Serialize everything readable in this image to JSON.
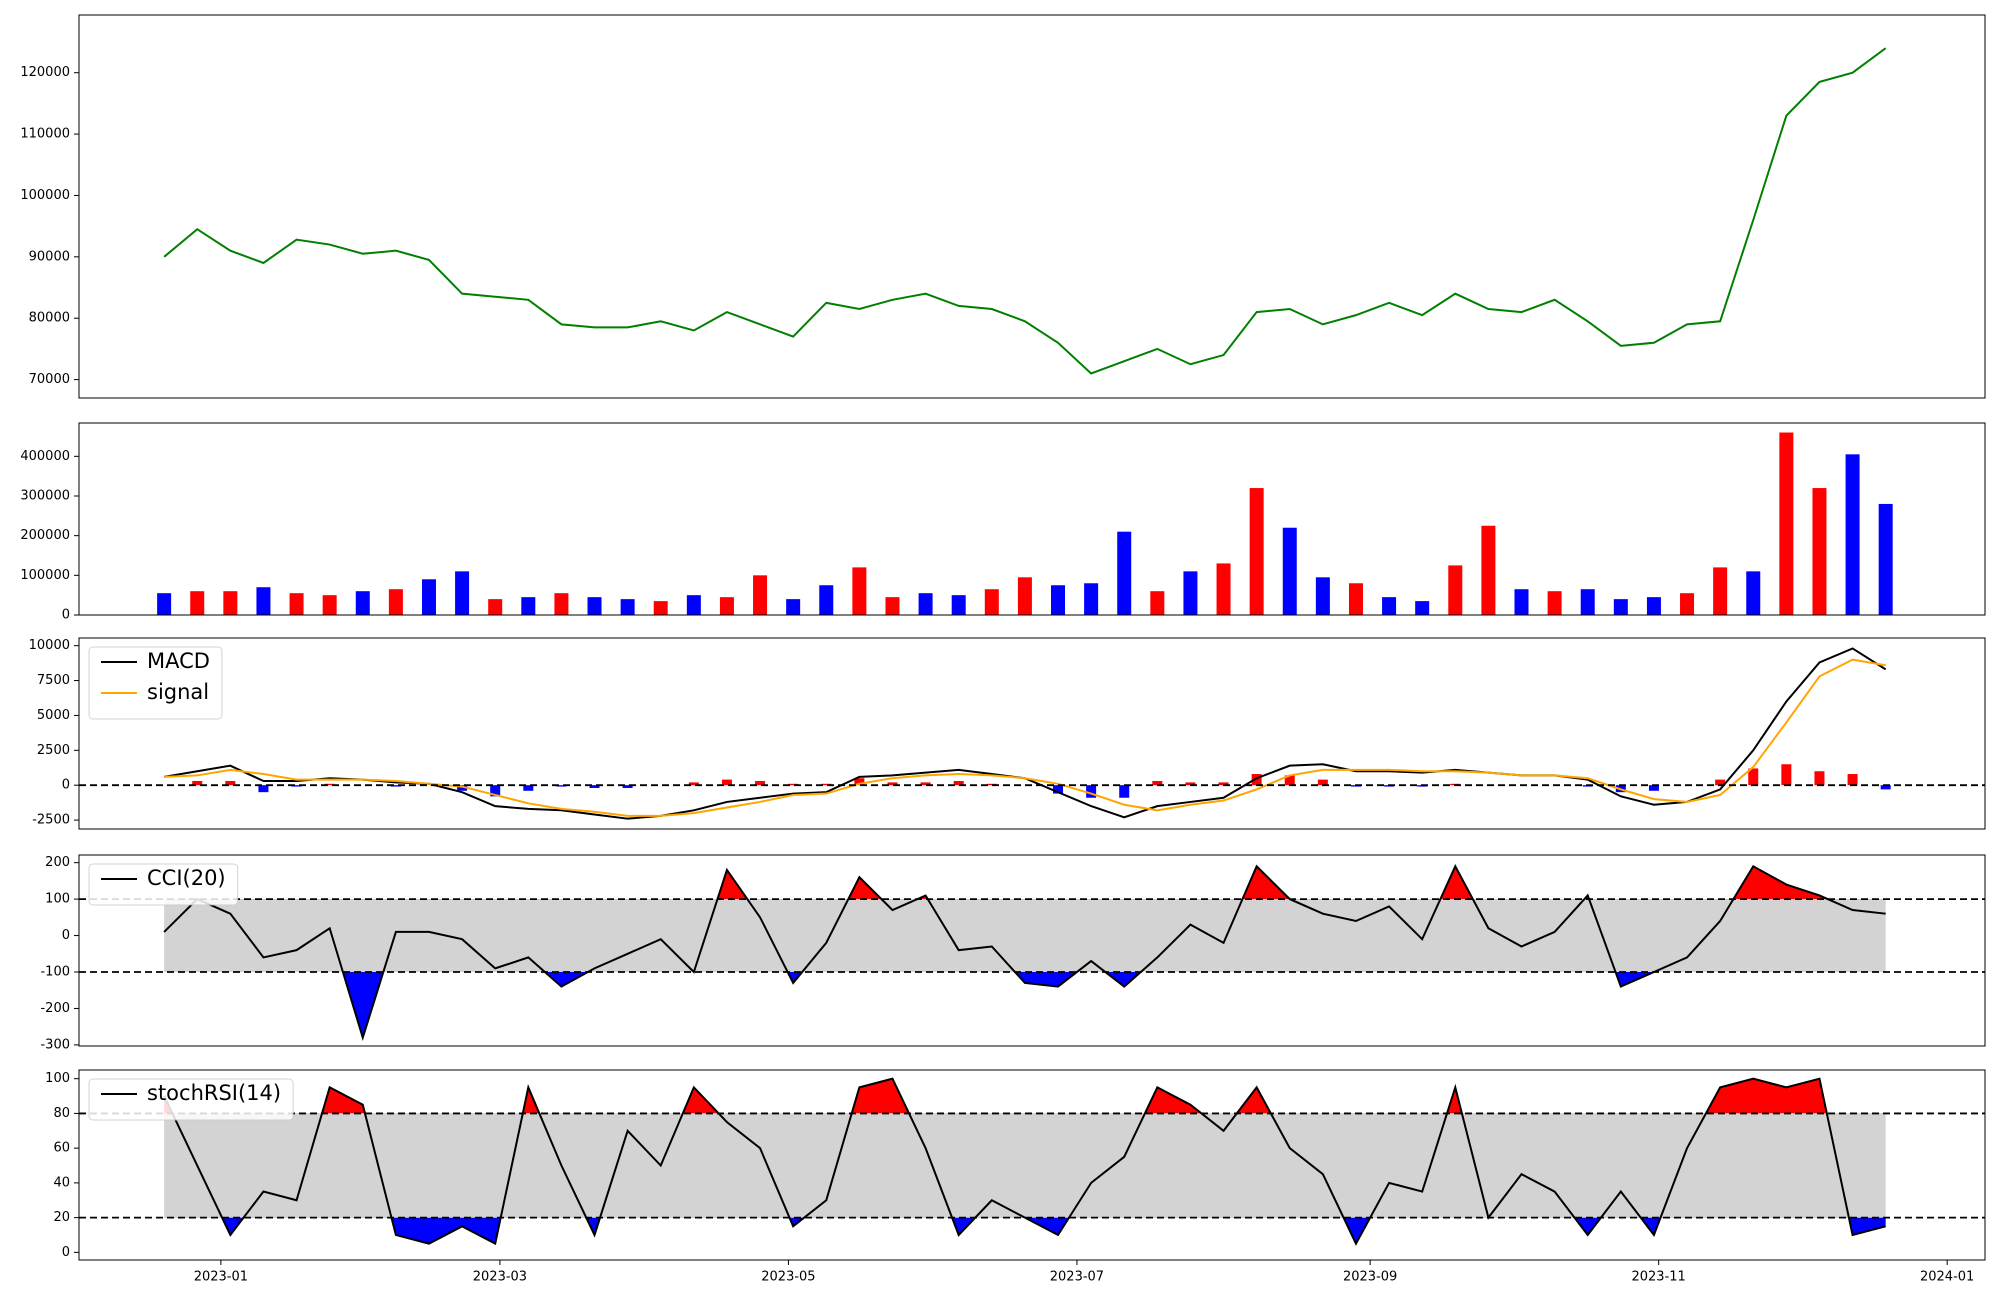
{
  "chart_data": [
    {
      "type": "line",
      "color": "green",
      "x": [
        "2022-12-20",
        "2022-12-27",
        "2023-01-03",
        "2023-01-10",
        "2023-01-17",
        "2023-01-24",
        "2023-01-31",
        "2023-02-07",
        "2023-02-14",
        "2023-02-21",
        "2023-02-28",
        "2023-03-07",
        "2023-03-14",
        "2023-03-21",
        "2023-03-28",
        "2023-04-04",
        "2023-04-11",
        "2023-04-18",
        "2023-04-25",
        "2023-05-02",
        "2023-05-09",
        "2023-05-16",
        "2023-05-23",
        "2023-05-30",
        "2023-06-06",
        "2023-06-13",
        "2023-06-20",
        "2023-06-27",
        "2023-07-04",
        "2023-07-11",
        "2023-07-18",
        "2023-07-25",
        "2023-08-01",
        "2023-08-08",
        "2023-08-15",
        "2023-08-22",
        "2023-08-29",
        "2023-09-05",
        "2023-09-12",
        "2023-09-19",
        "2023-09-26",
        "2023-10-03",
        "2023-10-10",
        "2023-10-17",
        "2023-10-24",
        "2023-10-31",
        "2023-11-07",
        "2023-11-14",
        "2023-11-21",
        "2023-11-28",
        "2023-12-05",
        "2023-12-12",
        "2023-12-19"
      ],
      "values": [
        90000,
        94500,
        91000,
        89000,
        92800,
        92000,
        90500,
        91000,
        89500,
        84000,
        83500,
        83000,
        79000,
        78500,
        78500,
        79500,
        78000,
        81000,
        79000,
        77000,
        82500,
        81500,
        83000,
        84000,
        82000,
        81500,
        79500,
        76000,
        71000,
        73000,
        75000,
        72500,
        74000,
        81000,
        81500,
        79000,
        80500,
        82500,
        80500,
        84000,
        81500,
        81000,
        83000,
        79500,
        75500,
        76000,
        79000,
        79500,
        96000,
        113000,
        118500,
        120000,
        124000
      ],
      "xlim": [
        "2022-12-02",
        "2024-01-09"
      ],
      "ylim": [
        67000,
        129400
      ],
      "yticks": [
        70000,
        80000,
        90000,
        100000,
        110000,
        120000
      ]
    },
    {
      "type": "bar",
      "values": [
        55000,
        60000,
        60000,
        70000,
        55000,
        50000,
        60000,
        65000,
        90000,
        110000,
        40000,
        45000,
        55000,
        45000,
        40000,
        35000,
        50000,
        45000,
        100000,
        40000,
        75000,
        120000,
        45000,
        55000,
        50000,
        65000,
        95000,
        75000,
        80000,
        210000,
        60000,
        110000,
        130000,
        320000,
        220000,
        95000,
        80000,
        45000,
        35000,
        125000,
        225000,
        65000,
        60000,
        65000,
        40000,
        45000,
        55000,
        120000,
        110000,
        460000,
        320000,
        405000,
        280000
      ],
      "colors": [
        "blue",
        "red",
        "red",
        "blue",
        "red",
        "red",
        "blue",
        "red",
        "blue",
        "blue",
        "red",
        "blue",
        "red",
        "blue",
        "blue",
        "red",
        "blue",
        "red",
        "red",
        "blue",
        "blue",
        "red",
        "red",
        "blue",
        "blue",
        "red",
        "red",
        "blue",
        "blue",
        "blue",
        "red",
        "blue",
        "red",
        "red",
        "blue",
        "blue",
        "red",
        "blue",
        "blue",
        "red",
        "red",
        "blue",
        "red",
        "blue",
        "blue",
        "blue",
        "red",
        "red",
        "blue",
        "red",
        "red",
        "blue",
        "blue"
      ],
      "ylim": [
        0,
        484000
      ],
      "yticks": [
        0,
        100000,
        200000,
        300000,
        400000
      ]
    },
    {
      "type": "macd",
      "series": [
        {
          "name": "MACD",
          "color": "black",
          "values": [
            600,
            1000,
            1400,
            300,
            300,
            500,
            400,
            200,
            100,
            -500,
            -1500,
            -1700,
            -1800,
            -2100,
            -2400,
            -2200,
            -1800,
            -1200,
            -900,
            -600,
            -500,
            600,
            700,
            900,
            1100,
            800,
            500,
            -500,
            -1500,
            -2300,
            -1500,
            -1200,
            -900,
            500,
            1400,
            1500,
            1000,
            1000,
            900,
            1100,
            900,
            700,
            700,
            400,
            -800,
            -1400,
            -1200,
            -300,
            2500,
            6000,
            8800,
            9800,
            8300
          ]
        },
        {
          "name": "signal",
          "color": "orange",
          "values": [
            600,
            700,
            1100,
            800,
            400,
            400,
            400,
            300,
            100,
            -100,
            -700,
            -1300,
            -1700,
            -1900,
            -2200,
            -2200,
            -2000,
            -1600,
            -1200,
            -700,
            -600,
            100,
            500,
            700,
            800,
            700,
            500,
            100,
            -600,
            -1400,
            -1800,
            -1400,
            -1100,
            -300,
            700,
            1100,
            1100,
            1100,
            1000,
            1000,
            900,
            700,
            700,
            500,
            -300,
            -1000,
            -1200,
            -700,
            1300,
            4500,
            7800,
            9000,
            8600
          ]
        }
      ],
      "histogram": {
        "values": [
          0,
          300,
          300,
          -500,
          -100,
          100,
          0,
          -100,
          0,
          -400,
          -800,
          -400,
          -100,
          -200,
          -200,
          0,
          200,
          400,
          300,
          100,
          100,
          500,
          200,
          200,
          300,
          100,
          0,
          -600,
          -900,
          -900,
          300,
          200,
          200,
          800,
          700,
          400,
          -100,
          -100,
          -100,
          100,
          0,
          0,
          0,
          -100,
          -500,
          -400,
          0,
          400,
          1200,
          1500,
          1000,
          800,
          -300
        ],
        "up_color": "red",
        "down_color": "blue"
      },
      "hlines": [
        0
      ],
      "legend": "upper left",
      "ylim": [
        -3140,
        10550
      ],
      "yticks": [
        -2500,
        0,
        2500,
        5000,
        7500,
        10000
      ]
    },
    {
      "type": "band",
      "series": [
        {
          "name": "CCI(20)",
          "color": "black",
          "values": [
            10,
            100,
            60,
            -60,
            -40,
            20,
            -280,
            10,
            10,
            -10,
            -90,
            -60,
            -140,
            -90,
            -50,
            -10,
            -100,
            180,
            50,
            -130,
            -20,
            160,
            70,
            110,
            -40,
            -30,
            -130,
            -140,
            -70,
            -140,
            -60,
            30,
            -20,
            190,
            100,
            60,
            40,
            80,
            -10,
            190,
            20,
            -30,
            10,
            110,
            -140,
            -100,
            -60,
            40,
            190,
            140,
            110,
            70,
            60
          ]
        }
      ],
      "hlines": [
        100,
        -100
      ],
      "band_color": "lightgray",
      "above_color": "red",
      "below_color": "blue",
      "legend": "upper left",
      "ylim": [
        -303,
        221
      ],
      "yticks": [
        -300,
        -200,
        -100,
        0,
        100,
        200
      ]
    },
    {
      "type": "band",
      "series": [
        {
          "name": "stochRSI(14)",
          "color": "black",
          "values": [
            90,
            50,
            10,
            35,
            30,
            95,
            85,
            10,
            5,
            15,
            5,
            95,
            50,
            10,
            70,
            50,
            95,
            75,
            60,
            15,
            30,
            95,
            100,
            60,
            10,
            30,
            20,
            10,
            40,
            55,
            95,
            85,
            70,
            95,
            60,
            45,
            5,
            40,
            35,
            95,
            20,
            45,
            35,
            10,
            35,
            10,
            60,
            95,
            100,
            95,
            100,
            10,
            15
          ]
        }
      ],
      "hlines": [
        80,
        20
      ],
      "band_color": "lightgray",
      "above_color": "red",
      "below_color": "blue",
      "legend": "upper left",
      "ylim": [
        -4.4,
        105
      ],
      "yticks": [
        0,
        20,
        40,
        60,
        80,
        100
      ],
      "xticks": [
        {
          "value": "2023-01-01",
          "label": "2023-01"
        },
        {
          "value": "2023-03-01",
          "label": "2023-03"
        },
        {
          "value": "2023-05-01",
          "label": "2023-05"
        },
        {
          "value": "2023-07-01",
          "label": "2023-07"
        },
        {
          "value": "2023-09-01",
          "label": "2023-09"
        },
        {
          "value": "2023-11-01",
          "label": "2023-11"
        },
        {
          "value": "2024-01-01",
          "label": "2024-01"
        }
      ]
    }
  ]
}
